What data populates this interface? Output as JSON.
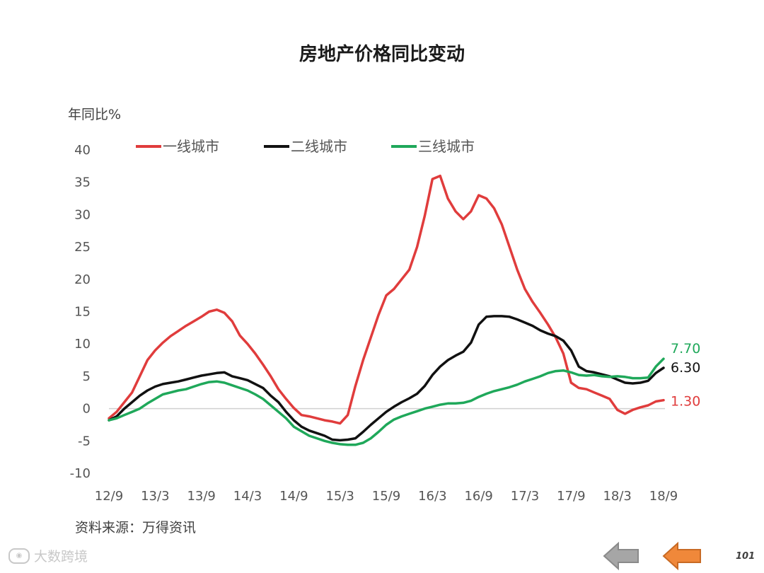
{
  "title": "房地产价格同比变动",
  "source": "资料来源：万得资讯",
  "watermark": "大数跨境",
  "page_number": "101",
  "nav": {
    "prev_icon": "arrow-left-icon",
    "next_icon": "arrow-left-icon"
  },
  "colors": {
    "tier1": "#e03c3c",
    "tier2": "#111111",
    "tier3": "#1fa85a",
    "nav_prev": "#a6a6a6",
    "nav_next": "#f0883a"
  },
  "chart_data": {
    "type": "line",
    "ylabel": "年同比%",
    "ylim": [
      -10,
      40
    ],
    "yticks": [
      40,
      35,
      30,
      25,
      20,
      15,
      10,
      5,
      0,
      -5,
      -10
    ],
    "xtick_labels": [
      "12/9",
      "13/3",
      "13/9",
      "14/3",
      "14/9",
      "15/3",
      "15/9",
      "16/3",
      "16/9",
      "17/3",
      "17/9",
      "18/3",
      "18/9"
    ],
    "x": [
      "12/9",
      "12/10",
      "12/11",
      "12/12",
      "13/1",
      "13/2",
      "13/3",
      "13/4",
      "13/5",
      "13/6",
      "13/7",
      "13/8",
      "13/9",
      "13/10",
      "13/11",
      "13/12",
      "14/1",
      "14/2",
      "14/3",
      "14/4",
      "14/5",
      "14/6",
      "14/7",
      "14/8",
      "14/9",
      "14/10",
      "14/11",
      "14/12",
      "15/1",
      "15/2",
      "15/3",
      "15/4",
      "15/5",
      "15/6",
      "15/7",
      "15/8",
      "15/9",
      "15/10",
      "15/11",
      "15/12",
      "16/1",
      "16/2",
      "16/3",
      "16/4",
      "16/5",
      "16/6",
      "16/7",
      "16/8",
      "16/9",
      "16/10",
      "16/11",
      "16/12",
      "17/1",
      "17/2",
      "17/3",
      "17/4",
      "17/5",
      "17/6",
      "17/7",
      "17/8",
      "17/9",
      "17/10",
      "17/11",
      "17/12",
      "18/1",
      "18/2",
      "18/3",
      "18/4",
      "18/5",
      "18/6",
      "18/7",
      "18/8",
      "18/9"
    ],
    "grid": false,
    "legend_position": "top",
    "series": [
      {
        "name": "一线城市",
        "end_label": "1.30",
        "values": [
          -1.5,
          -0.5,
          1,
          2.5,
          5,
          7.5,
          9,
          10.2,
          11.2,
          12,
          12.8,
          13.5,
          14.2,
          15,
          15.3,
          14.8,
          13.5,
          11.3,
          10,
          8.5,
          6.8,
          5,
          3,
          1.5,
          0.1,
          -1,
          -1.2,
          -1.5,
          -1.8,
          -2,
          -2.3,
          -1,
          3.5,
          7.5,
          11,
          14.5,
          17.5,
          18.5,
          20,
          21.5,
          25,
          29.8,
          35.5,
          36,
          32.5,
          30.5,
          29.3,
          30.5,
          33,
          32.5,
          31,
          28.5,
          25,
          21.5,
          18.5,
          16.5,
          14.8,
          13,
          11,
          8.5,
          4,
          3.2,
          3,
          2.5,
          2,
          1.5,
          -0.2,
          -0.8,
          -0.2,
          0.2,
          0.5,
          1.1,
          1.3
        ]
      },
      {
        "name": "二线城市",
        "end_label": "6.30",
        "values": [
          -1.8,
          -1.2,
          0,
          1,
          2,
          2.8,
          3.4,
          3.8,
          4,
          4.2,
          4.5,
          4.8,
          5.1,
          5.3,
          5.5,
          5.6,
          5,
          4.7,
          4.4,
          3.8,
          3.2,
          2,
          1,
          -0.5,
          -1.8,
          -2.8,
          -3.4,
          -3.8,
          -4.2,
          -4.8,
          -4.9,
          -4.8,
          -4.6,
          -3.6,
          -2.5,
          -1.5,
          -0.5,
          0.3,
          1,
          1.6,
          2.3,
          3.5,
          5.2,
          6.5,
          7.5,
          8.2,
          8.8,
          10.2,
          13,
          14.2,
          14.3,
          14.3,
          14.2,
          13.8,
          13.3,
          12.8,
          12.1,
          11.6,
          11.2,
          10.5,
          9,
          6.5,
          5.8,
          5.6,
          5.3,
          5,
          4.5,
          4,
          3.9,
          4,
          4.3,
          5.5,
          6.3
        ]
      },
      {
        "name": "三线城市",
        "end_label": "7.70",
        "values": [
          -1.8,
          -1.5,
          -1,
          -0.5,
          0,
          0.8,
          1.5,
          2.2,
          2.5,
          2.8,
          3,
          3.4,
          3.8,
          4.1,
          4.2,
          4,
          3.6,
          3.2,
          2.8,
          2.2,
          1.5,
          0.5,
          -0.5,
          -1.5,
          -2.8,
          -3.5,
          -4.2,
          -4.6,
          -5,
          -5.3,
          -5.5,
          -5.6,
          -5.6,
          -5.3,
          -4.6,
          -3.6,
          -2.5,
          -1.7,
          -1.2,
          -0.8,
          -0.4,
          0,
          0.3,
          0.6,
          0.8,
          0.8,
          0.9,
          1.2,
          1.8,
          2.3,
          2.7,
          3,
          3.3,
          3.7,
          4.2,
          4.6,
          5,
          5.5,
          5.8,
          5.9,
          5.6,
          5.2,
          5.1,
          5.2,
          5,
          4.9,
          5,
          4.9,
          4.7,
          4.7,
          4.8,
          6.5,
          7.7
        ]
      }
    ]
  }
}
